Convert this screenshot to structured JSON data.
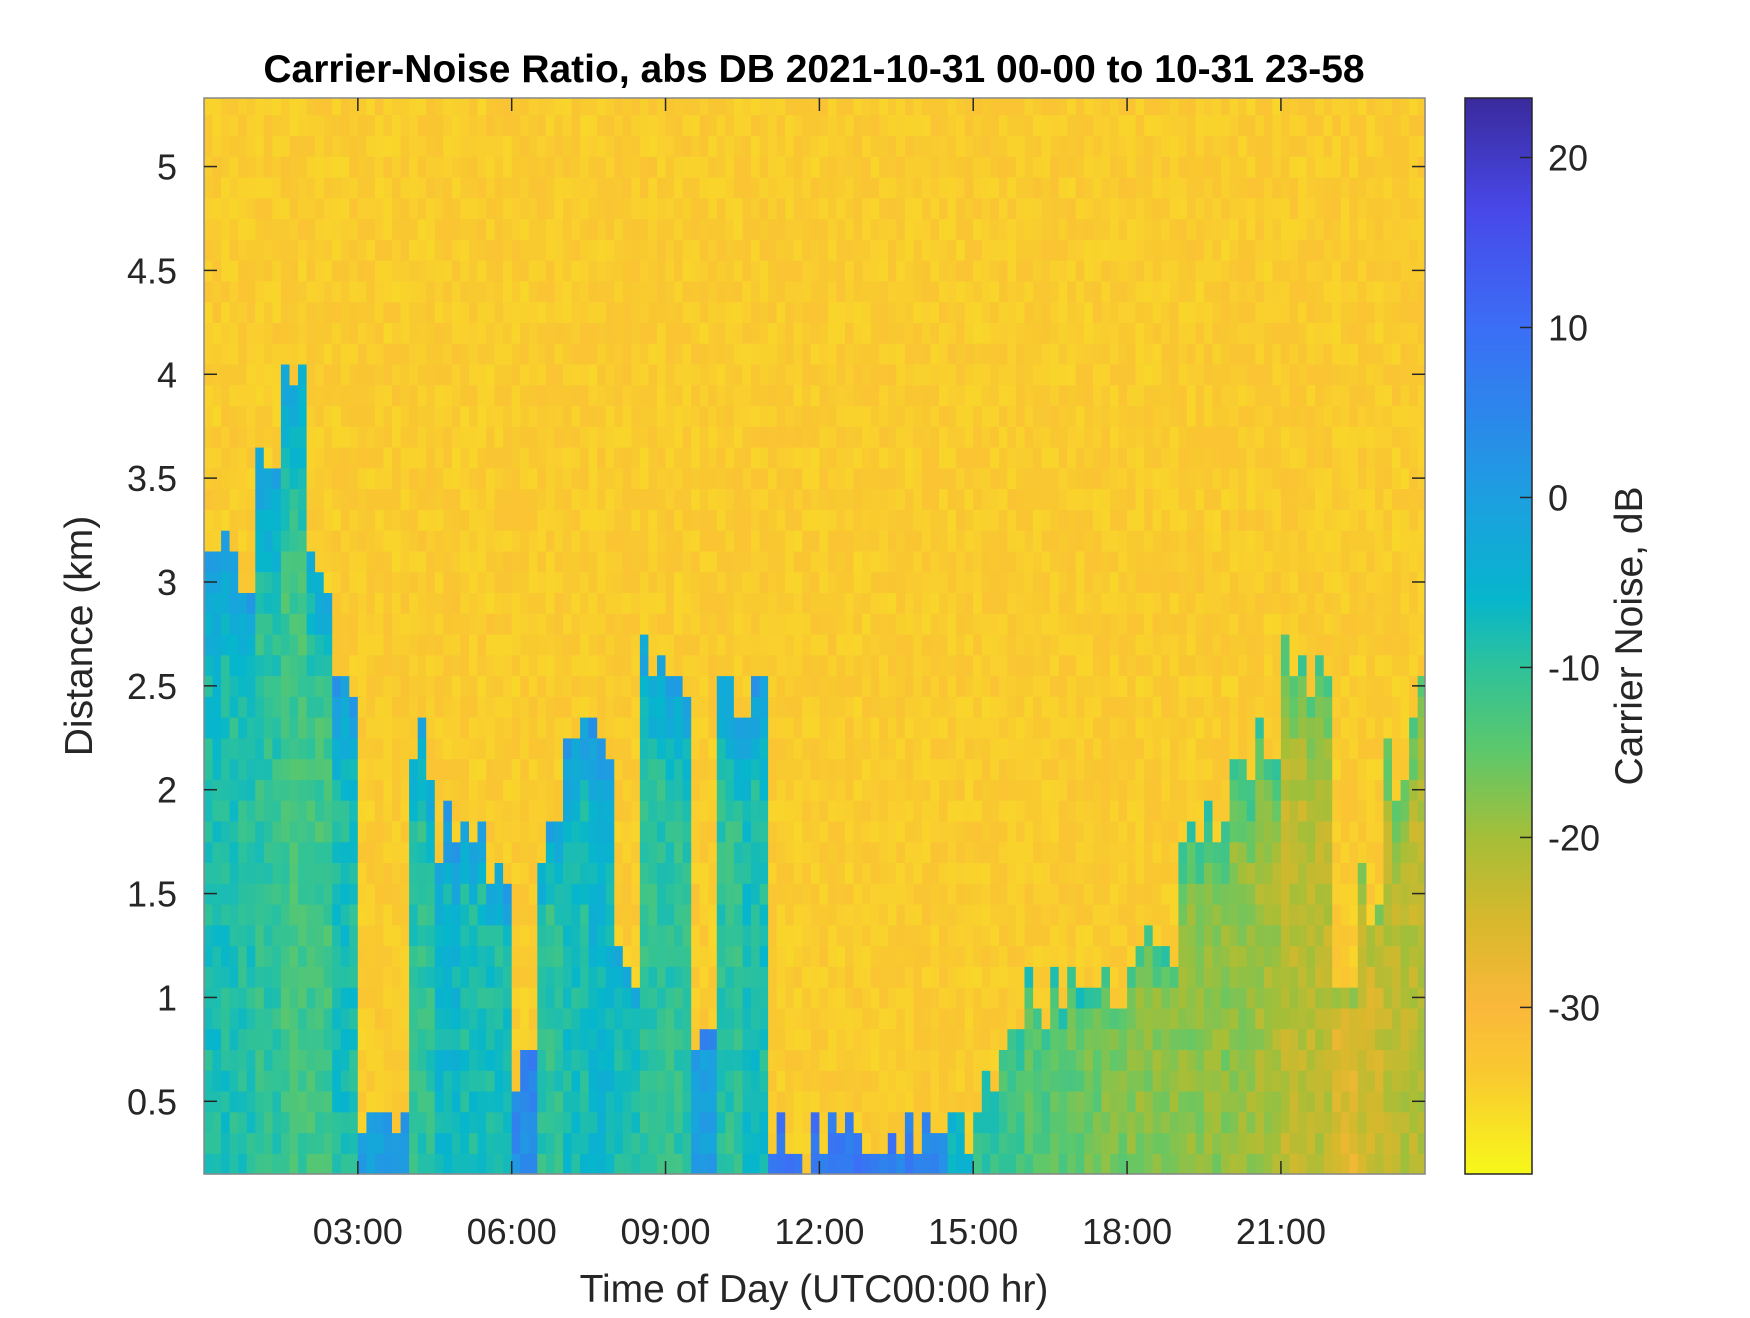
{
  "chart_data": {
    "type": "heatmap",
    "title": "Carrier-Noise Ratio, abs DB 2021-10-31 00-00 to 10-31 23-58",
    "xlabel": "Time of Day (UTC00:00 hr)",
    "ylabel": "Distance (km)",
    "colorbar_label": "Carrier Noise, dB",
    "xlim_hours": [
      0,
      24
    ],
    "ylim_km": [
      0.15,
      5.33
    ],
    "clim_db": [
      -39.8,
      23.5
    ],
    "x_ticks": [
      {
        "value": 3,
        "label": "03:00"
      },
      {
        "value": 6,
        "label": "06:00"
      },
      {
        "value": 9,
        "label": "09:00"
      },
      {
        "value": 12,
        "label": "12:00"
      },
      {
        "value": 15,
        "label": "15:00"
      },
      {
        "value": 18,
        "label": "18:00"
      },
      {
        "value": 21,
        "label": "21:00"
      }
    ],
    "y_ticks": [
      {
        "value": 0.5,
        "label": "0.5"
      },
      {
        "value": 1,
        "label": "1"
      },
      {
        "value": 1.5,
        "label": "1.5"
      },
      {
        "value": 2,
        "label": "2"
      },
      {
        "value": 2.5,
        "label": "2.5"
      },
      {
        "value": 3,
        "label": "3"
      },
      {
        "value": 3.5,
        "label": "3.5"
      },
      {
        "value": 4,
        "label": "4"
      },
      {
        "value": 4.5,
        "label": "4.5"
      },
      {
        "value": 5,
        "label": "5"
      }
    ],
    "colorbar_ticks": [
      {
        "value": 20,
        "label": "20"
      },
      {
        "value": 10,
        "label": "10"
      },
      {
        "value": 0,
        "label": "0"
      },
      {
        "value": -10,
        "label": "-10"
      },
      {
        "value": -20,
        "label": "-20"
      },
      {
        "value": -30,
        "label": "-30"
      }
    ],
    "colormap": [
      {
        "db": -39.8,
        "color": "#f7f81a"
      },
      {
        "db": -34,
        "color": "#f9ca30"
      },
      {
        "db": -30,
        "color": "#fbb83a"
      },
      {
        "db": -25,
        "color": "#d8b82c"
      },
      {
        "db": -20,
        "color": "#a5be38"
      },
      {
        "db": -15,
        "color": "#5ec86a"
      },
      {
        "db": -10,
        "color": "#2ec29a"
      },
      {
        "db": -6,
        "color": "#06b6cc"
      },
      {
        "db": 0,
        "color": "#1d9fe0"
      },
      {
        "db": 10,
        "color": "#3b6ef6"
      },
      {
        "db": 17,
        "color": "#4848e8"
      },
      {
        "db": 23.5,
        "color": "#3a2a9c"
      }
    ],
    "time_bin_hours": 0.5,
    "background_cnr_db": -34,
    "signal_top_km": [
      3.2,
      3.0,
      3.6,
      4.0,
      3.0,
      2.4,
      0.4,
      0.4,
      2.2,
      1.8,
      1.8,
      1.6,
      0.7,
      1.8,
      2.3,
      2.3,
      1.2,
      2.6,
      2.4,
      0.8,
      2.4,
      2.5,
      0.35,
      0.3,
      0.3,
      0.3,
      0.3,
      0.3,
      0.35,
      0.4,
      0.6,
      0.9,
      1.0,
      1.1,
      1.1,
      1.1,
      1.2,
      1.3,
      1.8,
      1.9,
      2.1,
      2.2,
      2.6,
      2.5,
      1.0,
      1.5,
      2.1,
      2.5
    ],
    "surface_cnr_db": [
      -8,
      -9,
      -10,
      -12,
      -12,
      -8,
      0,
      2,
      -10,
      -6,
      -8,
      -8,
      4,
      -10,
      -8,
      -6,
      -8,
      -10,
      -10,
      0,
      -10,
      -8,
      8,
      8,
      8,
      8,
      8,
      6,
      4,
      -6,
      -10,
      -12,
      -14,
      -15,
      -16,
      -17,
      -18,
      -18,
      -18,
      -18,
      -19,
      -20,
      -22,
      -22,
      -26,
      -24,
      -22,
      -22
    ]
  }
}
